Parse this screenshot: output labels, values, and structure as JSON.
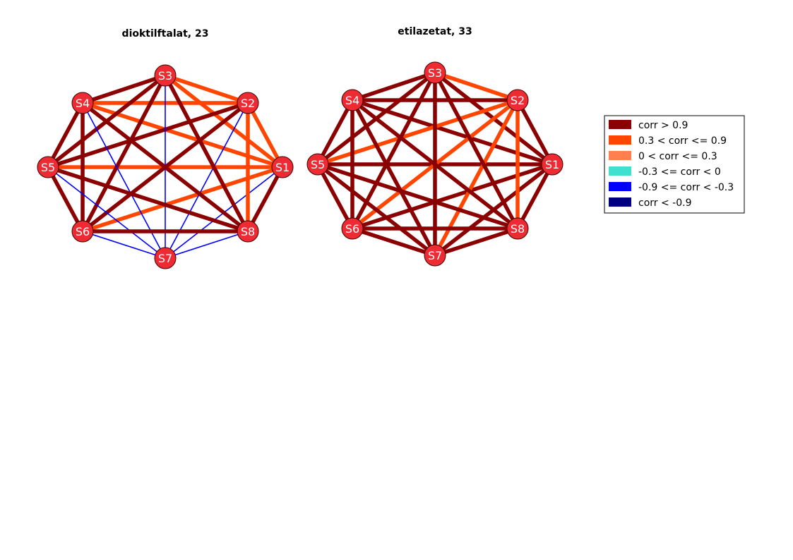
{
  "graphs": [
    {
      "title": "dioktilftalat, 23",
      "nodes": [
        "S1",
        "S2",
        "S3",
        "S4",
        "S5",
        "S6",
        "S7",
        "S8"
      ],
      "edges": [
        [
          "S1",
          "S2",
          "orange"
        ],
        [
          "S1",
          "S3",
          "orange"
        ],
        [
          "S1",
          "S4",
          "orange"
        ],
        [
          "S1",
          "S5",
          "orange"
        ],
        [
          "S1",
          "S6",
          "orange"
        ],
        [
          "S1",
          "S7",
          "blue"
        ],
        [
          "S1",
          "S8",
          "darkred"
        ],
        [
          "S2",
          "S3",
          "orange"
        ],
        [
          "S2",
          "S4",
          "orange"
        ],
        [
          "S2",
          "S5",
          "darkred"
        ],
        [
          "S2",
          "S6",
          "darkred"
        ],
        [
          "S2",
          "S7",
          "blue"
        ],
        [
          "S2",
          "S8",
          "orange"
        ],
        [
          "S3",
          "S4",
          "darkred"
        ],
        [
          "S3",
          "S5",
          "darkred"
        ],
        [
          "S3",
          "S6",
          "darkred"
        ],
        [
          "S3",
          "S7",
          "blue"
        ],
        [
          "S3",
          "S8",
          "darkred"
        ],
        [
          "S4",
          "S5",
          "darkred"
        ],
        [
          "S4",
          "S6",
          "darkred"
        ],
        [
          "S4",
          "S7",
          "blue"
        ],
        [
          "S4",
          "S8",
          "darkred"
        ],
        [
          "S5",
          "S6",
          "darkred"
        ],
        [
          "S5",
          "S7",
          "blue"
        ],
        [
          "S5",
          "S8",
          "darkred"
        ],
        [
          "S6",
          "S7",
          "blue"
        ],
        [
          "S6",
          "S8",
          "darkred"
        ],
        [
          "S7",
          "S8",
          "blue"
        ]
      ]
    },
    {
      "title": "etilazetat, 33",
      "nodes": [
        "S1",
        "S2",
        "S3",
        "S4",
        "S5",
        "S6",
        "S7",
        "S8"
      ],
      "edges": [
        [
          "S1",
          "S2",
          "darkred"
        ],
        [
          "S1",
          "S3",
          "darkred"
        ],
        [
          "S1",
          "S4",
          "darkred"
        ],
        [
          "S1",
          "S5",
          "darkred"
        ],
        [
          "S1",
          "S6",
          "darkred"
        ],
        [
          "S1",
          "S7",
          "darkred"
        ],
        [
          "S1",
          "S8",
          "darkred"
        ],
        [
          "S2",
          "S3",
          "orange"
        ],
        [
          "S2",
          "S4",
          "darkred"
        ],
        [
          "S2",
          "S5",
          "orange"
        ],
        [
          "S2",
          "S6",
          "orange"
        ],
        [
          "S2",
          "S7",
          "orange"
        ],
        [
          "S2",
          "S8",
          "orange"
        ],
        [
          "S3",
          "S4",
          "darkred"
        ],
        [
          "S3",
          "S5",
          "darkred"
        ],
        [
          "S3",
          "S6",
          "darkred"
        ],
        [
          "S3",
          "S7",
          "darkred"
        ],
        [
          "S3",
          "S8",
          "darkred"
        ],
        [
          "S4",
          "S5",
          "darkred"
        ],
        [
          "S4",
          "S6",
          "darkred"
        ],
        [
          "S4",
          "S7",
          "darkred"
        ],
        [
          "S4",
          "S8",
          "darkred"
        ],
        [
          "S5",
          "S6",
          "darkred"
        ],
        [
          "S5",
          "S7",
          "darkred"
        ],
        [
          "S5",
          "S8",
          "darkred"
        ],
        [
          "S6",
          "S7",
          "darkred"
        ],
        [
          "S6",
          "S8",
          "darkred"
        ],
        [
          "S7",
          "S8",
          "darkred"
        ]
      ]
    }
  ],
  "colors": {
    "darkred": "#8b0000",
    "orange": "#ff4500",
    "lightorange": "#ff7f50",
    "turquoise": "#40e0d0",
    "blue": "#0000ff",
    "navy": "#000080",
    "node_fill": "#ee2b33",
    "node_stroke": "#3a0000"
  },
  "legend": [
    {
      "label": "corr > 0.9",
      "color": "darkred"
    },
    {
      "label": "0.3 < corr <= 0.9",
      "color": "orange"
    },
    {
      "label": "0 < corr <= 0.3",
      "color": "lightorange"
    },
    {
      "label": "-0.3 <= corr < 0",
      "color": "turquoise"
    },
    {
      "label": "-0.9 <= corr < -0.3",
      "color": "blue"
    },
    {
      "label": "corr < -0.9",
      "color": "navy"
    }
  ]
}
